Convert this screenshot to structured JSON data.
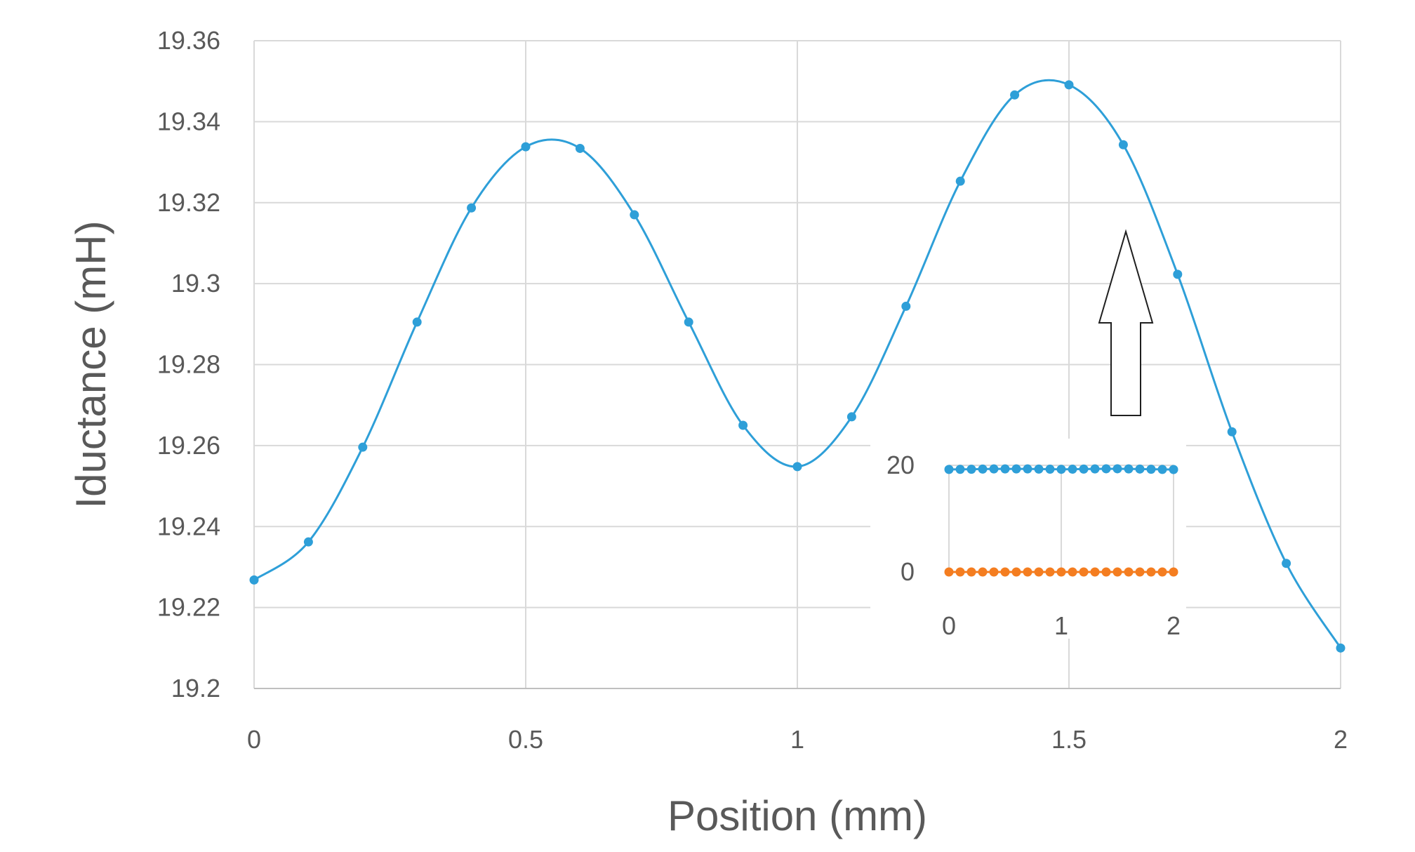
{
  "chart_data": [
    {
      "type": "line",
      "title": "",
      "xlabel": "Position (mm)",
      "ylabel": "Iductance (mH)",
      "xlim": [
        0,
        2
      ],
      "ylim": [
        19.2,
        19.36
      ],
      "x_ticks": [
        "0",
        "0.5",
        "1",
        "1.5",
        "2"
      ],
      "y_ticks": [
        "19.2",
        "19.22",
        "19.24",
        "19.26",
        "19.28",
        "19.3",
        "19.32",
        "19.34",
        "19.36"
      ],
      "grid": true,
      "smooth": true,
      "markers": true,
      "series": [
        {
          "color": "#2e9fd8",
          "x": [
            0,
            0.1,
            0.2,
            0.3,
            0.4,
            0.5,
            0.6,
            0.7,
            0.8,
            0.9,
            1.0,
            1.1,
            1.2,
            1.3,
            1.4,
            1.5,
            1.6,
            1.7,
            1.8,
            1.9,
            2.0
          ],
          "y": [
            19.2268,
            19.2362,
            19.2596,
            19.2905,
            19.3187,
            19.3338,
            19.3334,
            19.317,
            19.2905,
            19.265,
            19.2548,
            19.2671,
            19.2944,
            19.3253,
            19.3466,
            19.3491,
            19.3343,
            19.3023,
            19.2634,
            19.2309,
            19.21
          ]
        }
      ]
    },
    {
      "type": "scatter",
      "title": "",
      "xlabel": "",
      "ylabel": "",
      "xlim": [
        0,
        2
      ],
      "ylim": [
        0,
        20
      ],
      "x_ticks": [
        "0",
        "1",
        "2"
      ],
      "y_ticks": [
        "0",
        "20"
      ],
      "grid": true,
      "connected": true,
      "series": [
        {
          "color": "#2e9fd8",
          "x": [
            0,
            0.1,
            0.2,
            0.3,
            0.4,
            0.5,
            0.6,
            0.7,
            0.8,
            0.9,
            1.0,
            1.1,
            1.2,
            1.3,
            1.4,
            1.5,
            1.6,
            1.7,
            1.8,
            1.9,
            2.0
          ],
          "y": [
            19.23,
            19.24,
            19.26,
            19.29,
            19.32,
            19.33,
            19.33,
            19.32,
            19.29,
            19.27,
            19.25,
            19.27,
            19.29,
            19.33,
            19.35,
            19.35,
            19.33,
            19.3,
            19.26,
            19.23,
            19.21
          ]
        },
        {
          "color": "#f47d20",
          "x": [
            0,
            0.1,
            0.2,
            0.3,
            0.4,
            0.5,
            0.6,
            0.7,
            0.8,
            0.9,
            1.0,
            1.1,
            1.2,
            1.3,
            1.4,
            1.5,
            1.6,
            1.7,
            1.8,
            1.9,
            2.0
          ],
          "y": [
            0,
            0,
            0,
            0,
            0,
            0,
            0,
            0,
            0,
            0,
            0,
            0,
            0,
            0,
            0,
            0,
            0,
            0,
            0,
            0,
            0
          ]
        }
      ]
    }
  ]
}
